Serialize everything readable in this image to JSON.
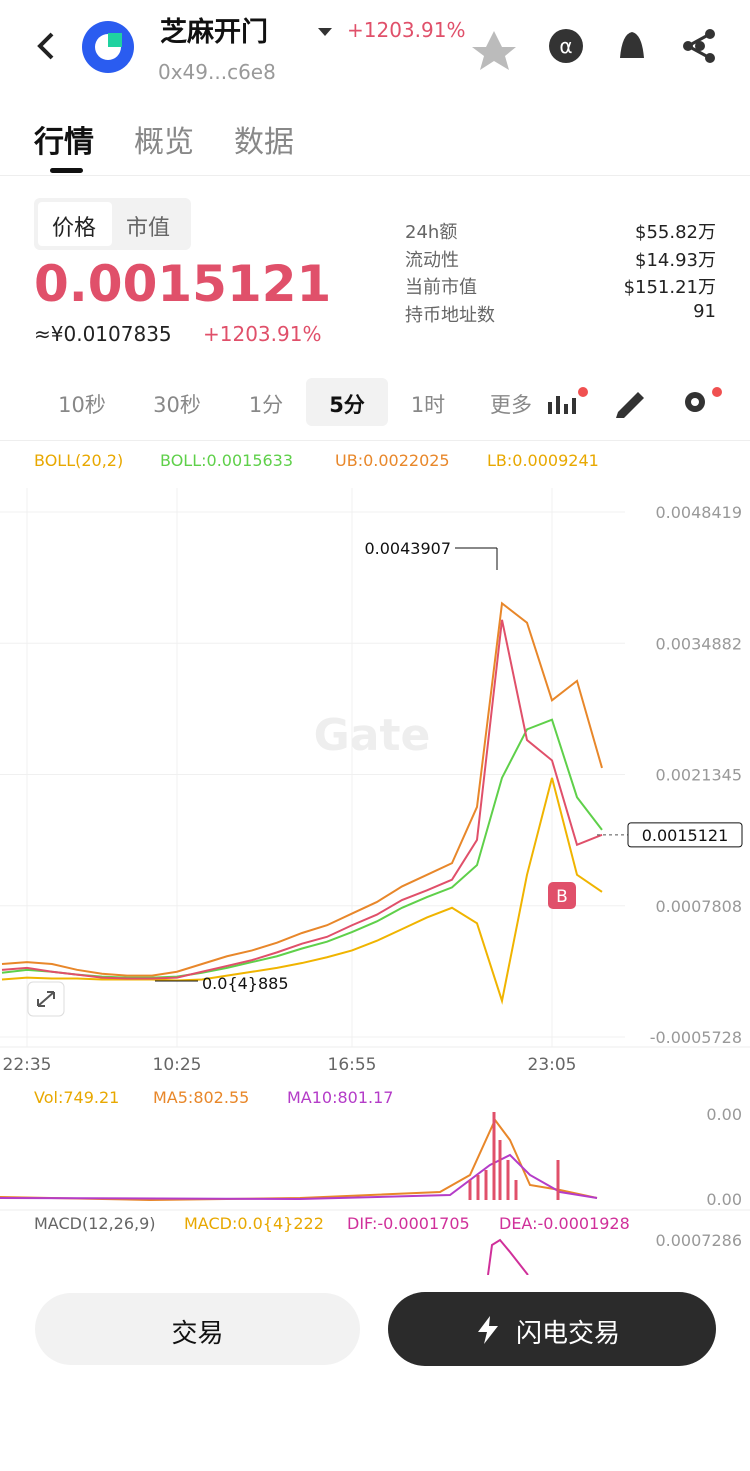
{
  "header": {
    "title": "芝麻开门",
    "change": "+1203.91%",
    "address": "0x49...c6e8"
  },
  "tabs": [
    "行情",
    "概览",
    "数据"
  ],
  "price_toggle": [
    "价格",
    "市值"
  ],
  "price": "0.0015121",
  "price_cny": "≈¥0.0107835",
  "price_change": "+1203.91%",
  "stats": [
    {
      "label": "24h额",
      "value": "$55.82万"
    },
    {
      "label": "流动性",
      "value": "$14.93万"
    },
    {
      "label": "当前市值",
      "value": "$151.21万"
    },
    {
      "label": "持币地址数",
      "value": "91"
    }
  ],
  "intervals": [
    "10秒",
    "30秒",
    "1分",
    "5分",
    "1时",
    "更多"
  ],
  "boll_legend": [
    "BOLL(20,2)",
    "BOLL:0.0015633",
    "UB:0.0022025",
    "LB:0.0009241"
  ],
  "volume": {
    "legend": [
      "Vol:749.21",
      "MA5:802.55",
      "MA10:801.17"
    ],
    "ticks": [
      "0.00",
      "0.00"
    ]
  },
  "macd": {
    "legend": [
      "MACD(12,26,9)",
      "MACD:0.0{4}222",
      "DIF:-0.0001705",
      "DEA:-0.0001928"
    ],
    "tick": "0.0007286"
  },
  "buttons": [
    "交易",
    "闪电交易"
  ],
  "chart_data": {
    "type": "line",
    "watermark": "Gate",
    "categories": [
      null,
      "22:35",
      null,
      null,
      null,
      null,
      null,
      "10:25",
      null,
      null,
      null,
      null,
      null,
      null,
      "16:55",
      null,
      null,
      null,
      null,
      null,
      null,
      null,
      "23:05",
      null,
      null
    ],
    "series": [
      {
        "name": "UB",
        "color": "#e8872a",
        "values": [
          0.00018,
          0.0002,
          0.00018,
          0.00012,
          8e-05,
          6e-05,
          6e-05,
          0.0001,
          0.00018,
          0.00026,
          0.00032,
          0.0004,
          0.0005,
          0.00058,
          0.0007,
          0.00082,
          0.00098,
          0.0011,
          0.00122,
          0.0018,
          0.0039,
          0.0037,
          0.0029,
          0.0031,
          0.0022025
        ]
      },
      {
        "name": "BOLL",
        "color": "#5fd04a",
        "values": [
          9e-05,
          0.00012,
          0.0001,
          7e-05,
          5e-05,
          4e-05,
          4e-05,
          5e-05,
          9e-05,
          0.00014,
          0.0002,
          0.00026,
          0.00034,
          0.00041,
          0.00051,
          0.00062,
          0.00076,
          0.00087,
          0.00097,
          0.0012,
          0.0021,
          0.0026,
          0.0027,
          0.0019,
          0.0015633
        ]
      },
      {
        "name": "LB",
        "color": "#f0b400",
        "values": [
          2e-05,
          4e-05,
          3e-05,
          3e-05,
          2e-05,
          2e-05,
          2e-05,
          1e-05,
          2e-05,
          6e-05,
          0.0001,
          0.00014,
          0.00019,
          0.00025,
          0.00032,
          0.00042,
          0.00054,
          0.00066,
          0.00076,
          0.0006,
          -0.0002,
          0.0011,
          0.0021,
          0.0011,
          0.0009241
        ]
      },
      {
        "name": "Price",
        "color": "#e0506a",
        "values": [
          0.00012,
          0.00014,
          0.0001,
          7e-05,
          4e-05,
          3e-05,
          3e-05,
          4e-05,
          0.0001,
          0.00016,
          0.00022,
          0.0003,
          0.00039,
          0.00046,
          0.00058,
          0.00069,
          0.00084,
          0.00094,
          0.00105,
          0.00146,
          0.00373,
          0.00249,
          0.00228,
          0.00141,
          0.0015121
        ]
      }
    ],
    "ylim": [
      -0.0005728,
      0.0048419
    ],
    "yticks": [
      0.0048419,
      0.0034882,
      0.0021345,
      0.0007808,
      -0.0005728
    ],
    "grid": true,
    "annotations": [
      "0.0043907",
      "0.0{4}885",
      "0.0015121",
      "B"
    ]
  }
}
